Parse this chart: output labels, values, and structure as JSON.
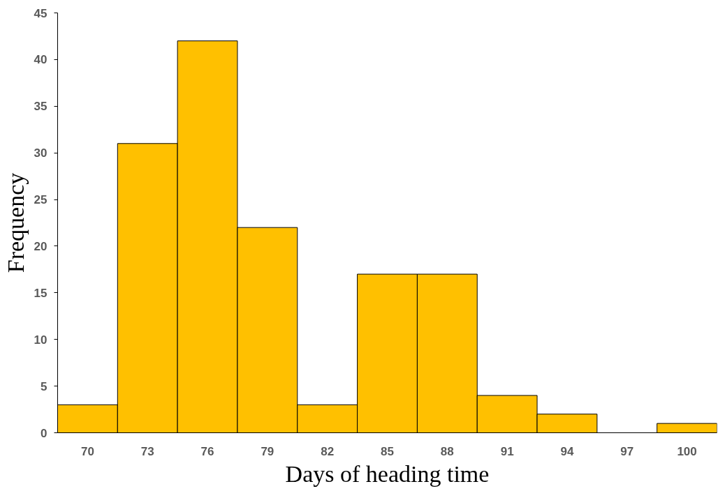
{
  "chart_data": {
    "type": "bar",
    "xlabel": "Days of heading time",
    "ylabel": "Frequency",
    "categories": [
      "70",
      "73",
      "76",
      "79",
      "82",
      "85",
      "88",
      "91",
      "94",
      "97",
      "100"
    ],
    "values": [
      3,
      31,
      42,
      22,
      3,
      17,
      17,
      4,
      2,
      0,
      1
    ],
    "color": "#ffc000",
    "ylim": [
      0,
      45
    ],
    "yticks": [
      0,
      5,
      10,
      15,
      20,
      25,
      30,
      35,
      40,
      45
    ],
    "grid": false
  }
}
